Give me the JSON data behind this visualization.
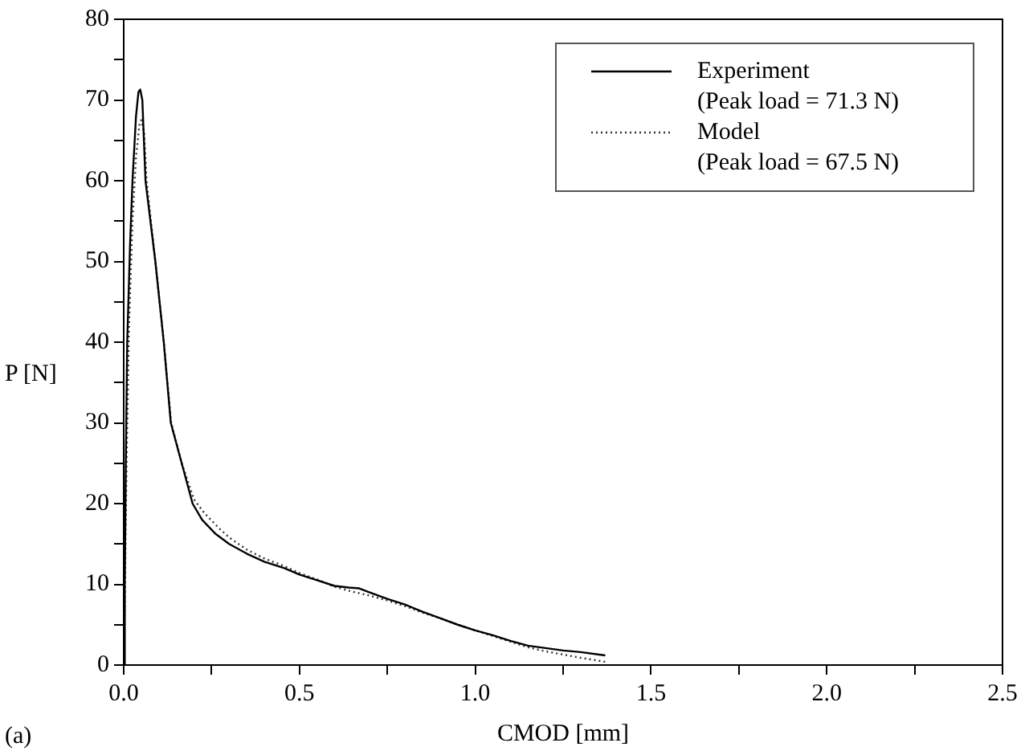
{
  "chart_data": {
    "type": "line",
    "xlabel": "CMOD [mm]",
    "ylabel": "P [N]",
    "annotations": [
      "(a)"
    ],
    "xlim": [
      0,
      2.5
    ],
    "xticks": [
      {
        "value": 0,
        "label": "0.0"
      },
      {
        "value": 0.25,
        "label": null
      },
      {
        "value": 0.5,
        "label": "0.5"
      },
      {
        "value": 0.75,
        "label": null
      },
      {
        "value": 1,
        "label": "1.0"
      },
      {
        "value": 1.25,
        "label": null
      },
      {
        "value": 1.5,
        "label": "1.5"
      },
      {
        "value": 1.75,
        "label": null
      },
      {
        "value": 2,
        "label": "2.0"
      },
      {
        "value": 2.25,
        "label": null
      },
      {
        "value": 2.5,
        "label": "2.5"
      }
    ],
    "ylim": [
      0,
      80
    ],
    "yticks": [
      0,
      {
        "value": 5,
        "label": null
      },
      10,
      {
        "value": 15,
        "label": null
      },
      20,
      {
        "value": 25,
        "label": null
      },
      30,
      {
        "value": 35,
        "label": null
      },
      40,
      {
        "value": 45,
        "label": null
      },
      50,
      {
        "value": 55,
        "label": null
      },
      60,
      {
        "value": 65,
        "label": null
      },
      70,
      {
        "value": 75,
        "label": null
      },
      80
    ],
    "grid": false,
    "legend": "top right",
    "marker": "none",
    "series": [
      {
        "name": "Experiment\n(Peak load = 71.3 N)",
        "color": "#000000",
        "line_style": "solid",
        "x": [
          0,
          0.003,
          0.006,
          0.01,
          0.018,
          0.025,
          0.035,
          0.042,
          0.047,
          0.053,
          0.062,
          0.076,
          0.09,
          0.114,
          0.134,
          0.165,
          0.196,
          0.223,
          0.26,
          0.3,
          0.35,
          0.4,
          0.457,
          0.5,
          0.55,
          0.6,
          0.64,
          0.67,
          0.7,
          0.75,
          0.8,
          0.85,
          0.9,
          0.95,
          1,
          1.05,
          1.1,
          1.15,
          1.2,
          1.25,
          1.3,
          1.37
        ],
        "values": [
          0,
          10,
          25,
          40,
          52,
          60,
          68,
          71,
          71.3,
          70,
          60,
          55,
          50,
          40,
          30,
          25,
          20,
          18,
          16.3,
          15,
          13.8,
          12.8,
          12,
          11.2,
          10.5,
          9.8,
          9.6,
          9.5,
          9,
          8.2,
          7.5,
          6.6,
          5.8,
          5,
          4.3,
          3.7,
          3,
          2.4,
          2.1,
          1.8,
          1.6,
          1.2
        ]
      },
      {
        "name": "Model\n(Peak load = 67.5 N)",
        "color": "#333333",
        "line_style": "dotted",
        "x": [
          0,
          0.003,
          0.008,
          0.015,
          0.025,
          0.035,
          0.045,
          0.05,
          0.058,
          0.065,
          0.09,
          0.114,
          0.135,
          0.165,
          0.2,
          0.23,
          0.27,
          0.3,
          0.35,
          0.4,
          0.46,
          0.5,
          0.55,
          0.6,
          0.65,
          0.7,
          0.75,
          0.8,
          0.85,
          0.9,
          0.95,
          1,
          1.05,
          1.1,
          1.15,
          1.2,
          1.25,
          1.3,
          1.37
        ],
        "values": [
          0,
          8,
          25,
          42,
          55,
          63,
          67,
          67.5,
          66,
          60,
          50,
          40,
          30,
          25,
          20.5,
          18.8,
          17,
          15.8,
          14.3,
          13.2,
          12.2,
          11.4,
          10.6,
          9.7,
          9.1,
          8.6,
          8,
          7.3,
          6.5,
          5.8,
          5,
          4.3,
          3.6,
          2.9,
          2.2,
          1.7,
          1.3,
          0.9,
          0.4
        ]
      }
    ]
  }
}
